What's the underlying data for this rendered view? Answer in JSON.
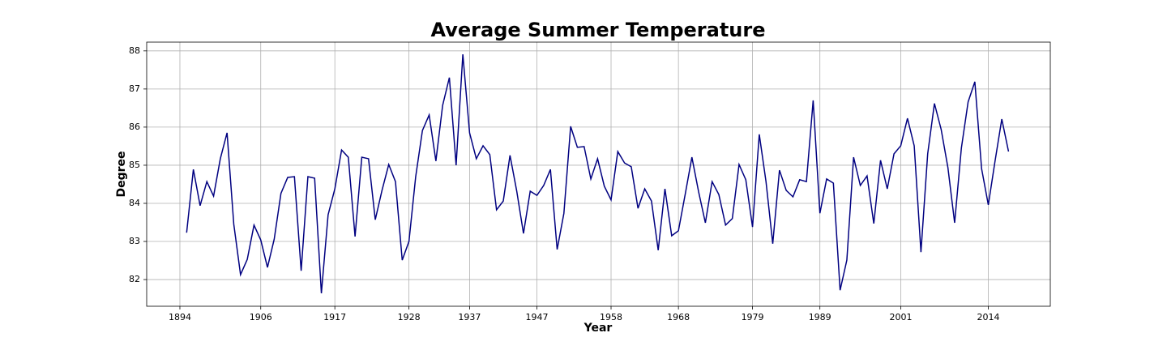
{
  "chart_data": {
    "type": "line",
    "title": "Average Summer Temperature",
    "x_label": "Year",
    "y_label": "Degree",
    "x": [
      1895,
      1896,
      1897,
      1898,
      1899,
      1900,
      1901,
      1902,
      1903,
      1904,
      1905,
      1906,
      1907,
      1908,
      1909,
      1910,
      1911,
      1912,
      1913,
      1914,
      1915,
      1916,
      1917,
      1918,
      1919,
      1920,
      1921,
      1922,
      1923,
      1924,
      1925,
      1926,
      1927,
      1928,
      1929,
      1930,
      1931,
      1932,
      1933,
      1934,
      1935,
      1936,
      1937,
      1938,
      1939,
      1940,
      1941,
      1942,
      1943,
      1944,
      1945,
      1946,
      1947,
      1948,
      1949,
      1950,
      1951,
      1952,
      1953,
      1954,
      1955,
      1956,
      1957,
      1958,
      1959,
      1960,
      1961,
      1962,
      1963,
      1964,
      1965,
      1966,
      1967,
      1968,
      1969,
      1970,
      1971,
      1972,
      1973,
      1974,
      1975,
      1976,
      1977,
      1978,
      1979,
      1980,
      1981,
      1982,
      1983,
      1984,
      1985,
      1986,
      1987,
      1988,
      1989,
      1990,
      1991,
      1992,
      1993,
      1994,
      1995,
      1996,
      1997,
      1998,
      1999,
      2000,
      2001,
      2002,
      2003,
      2004,
      2005,
      2006,
      2007,
      2008,
      2009,
      2010,
      2011,
      2012,
      2013,
      2014,
      2015,
      2016,
      2017
    ],
    "series": [
      {
        "color": "#000080",
        "values": [
          83.23,
          84.89,
          83.94,
          84.57,
          84.19,
          85.17,
          85.85,
          83.45,
          82.13,
          82.53,
          83.43,
          83.04,
          82.32,
          83.06,
          84.26,
          84.68,
          84.7,
          82.23,
          84.7,
          84.66,
          81.64,
          83.7,
          84.38,
          85.4,
          85.21,
          83.13,
          85.21,
          85.17,
          83.57,
          84.34,
          85.02,
          84.57,
          82.51,
          83.0,
          84.7,
          85.91,
          86.32,
          85.11,
          86.57,
          87.3,
          85.0,
          87.91,
          85.85,
          85.17,
          85.51,
          85.28,
          83.83,
          84.06,
          85.26,
          84.32,
          83.21,
          84.32,
          84.21,
          84.47,
          84.89,
          82.79,
          83.74,
          86.02,
          85.47,
          85.49,
          84.64,
          85.17,
          84.45,
          84.09,
          85.36,
          85.06,
          84.96,
          83.87,
          84.38,
          84.06,
          82.77,
          84.38,
          83.15,
          83.28,
          84.23,
          85.21,
          84.3,
          83.49,
          84.57,
          84.23,
          83.43,
          83.6,
          85.02,
          84.62,
          83.38,
          85.81,
          84.57,
          82.94,
          84.87,
          84.34,
          84.17,
          84.62,
          84.57,
          86.7,
          83.74,
          84.64,
          84.53,
          81.72,
          82.51,
          85.21,
          84.47,
          84.72,
          83.47,
          85.13,
          84.38,
          85.3,
          85.51,
          86.23,
          85.51,
          82.72,
          85.3,
          86.62,
          85.94,
          84.94,
          83.49,
          85.45,
          86.66,
          87.19,
          84.91,
          83.96,
          85.11,
          86.21,
          85.36
        ]
      }
    ],
    "xlim": [
      1889.07,
      2023.2
    ],
    "xticks": [
      1894,
      1906,
      1917,
      1928,
      1937,
      1947,
      1958,
      1968,
      1979,
      1989,
      2001,
      2014
    ],
    "ylim": [
      81.3,
      88.23
    ],
    "yticks": [
      82,
      83,
      84,
      85,
      86,
      87,
      88
    ],
    "grid": true
  }
}
